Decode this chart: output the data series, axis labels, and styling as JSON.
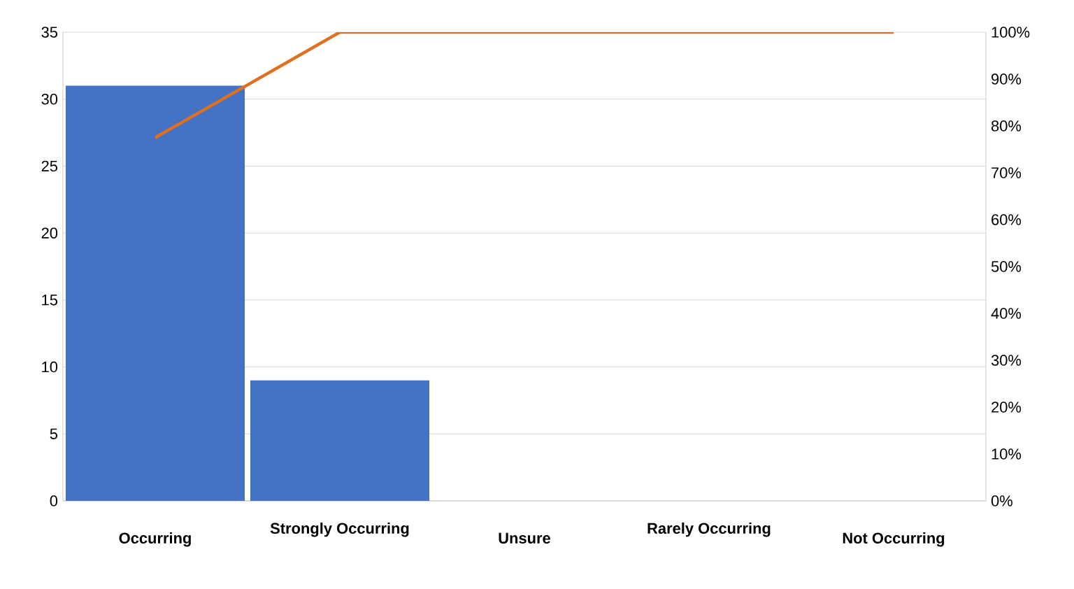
{
  "chart_data": {
    "type": "bar",
    "categories": [
      "Occurring",
      "Strongly Occurring",
      "Unsure",
      "Rarely Occurring",
      "Not Occurring"
    ],
    "series": [
      {
        "color": "#4472c4",
        "values": [
          31,
          9,
          0,
          0,
          0
        ]
      },
      {
        "type": "line",
        "axis": "y2",
        "color": "#e07020",
        "values": [
          77.5,
          100,
          100,
          100,
          100
        ]
      }
    ],
    "ylim": [
      0,
      35
    ],
    "yticks": [
      0,
      5,
      10,
      15,
      20,
      25,
      30,
      35
    ],
    "y2lim": [
      0,
      100
    ],
    "y2ticks": [
      {
        "value": 0,
        "label": "0%"
      },
      {
        "value": 10,
        "label": "10%"
      },
      {
        "value": 20,
        "label": "20%"
      },
      {
        "value": 30,
        "label": "30%"
      },
      {
        "value": 40,
        "label": "40%"
      },
      {
        "value": 50,
        "label": "50%"
      },
      {
        "value": 60,
        "label": "60%"
      },
      {
        "value": 70,
        "label": "70%"
      },
      {
        "value": 80,
        "label": "80%"
      },
      {
        "value": 90,
        "label": "90%"
      },
      {
        "value": 100,
        "label": "100%"
      }
    ],
    "grid": "y"
  }
}
